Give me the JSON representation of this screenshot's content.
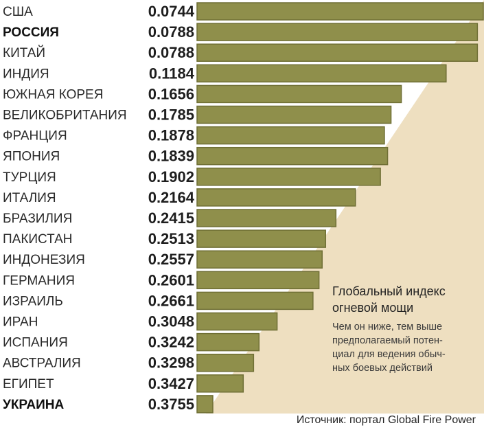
{
  "chart_data": {
    "type": "bar",
    "orientation": "horizontal",
    "categories": [
      "США",
      "РОССИЯ",
      "КИТАЙ",
      "ИНДИЯ",
      "ЮЖНАЯ КОРЕЯ",
      "ВЕЛИКОБРИТАНИЯ",
      "ФРАНЦИЯ",
      "ЯПОНИЯ",
      "ТУРЦИЯ",
      "ИТАЛИЯ",
      "БРАЗИЛИЯ",
      "ПАКИСТАН",
      "ИНДОНЕЗИЯ",
      "ГЕРМАНИЯ",
      "ИЗРАИЛЬ",
      "ИРАН",
      "ИСПАНИЯ",
      "АВСТРАЛИЯ",
      "ЕГИПЕТ",
      "УКРАИНА"
    ],
    "value_labels": [
      "0.0744",
      "0.0788",
      "0.0788",
      "0.1184",
      "0.1656",
      "0.1785",
      "0.1878",
      "0.1839",
      "0.1902",
      "0.2164",
      "0.2415",
      "0.2513",
      "0.2557",
      "0.2601",
      "0.2661",
      "0.3048",
      "0.3242",
      "0.3298",
      "0.3427",
      "0.3755"
    ],
    "bar_lengths": [
      1.0,
      0.977,
      0.977,
      0.868,
      0.712,
      0.676,
      0.653,
      0.664,
      0.639,
      0.552,
      0.484,
      0.448,
      0.436,
      0.425,
      0.404,
      0.279,
      0.216,
      0.197,
      0.161,
      0.055
    ],
    "highlighted": [
      "РОССИЯ",
      "УКРАИНА"
    ],
    "colors": {
      "bar": "#8f8f4b",
      "bar_border": "#6f6f35",
      "background_wedge": "#eedfc0"
    }
  },
  "note": {
    "title_line1": "Глобальный индекс",
    "title_line2": "огневой мощи",
    "text_lines": [
      "Чем он ниже, тем выше",
      "предполагаемый потен-",
      "циал для ведения обыч-",
      "ных боевых действий"
    ]
  },
  "source": "Источник: портал Global Fire Power"
}
